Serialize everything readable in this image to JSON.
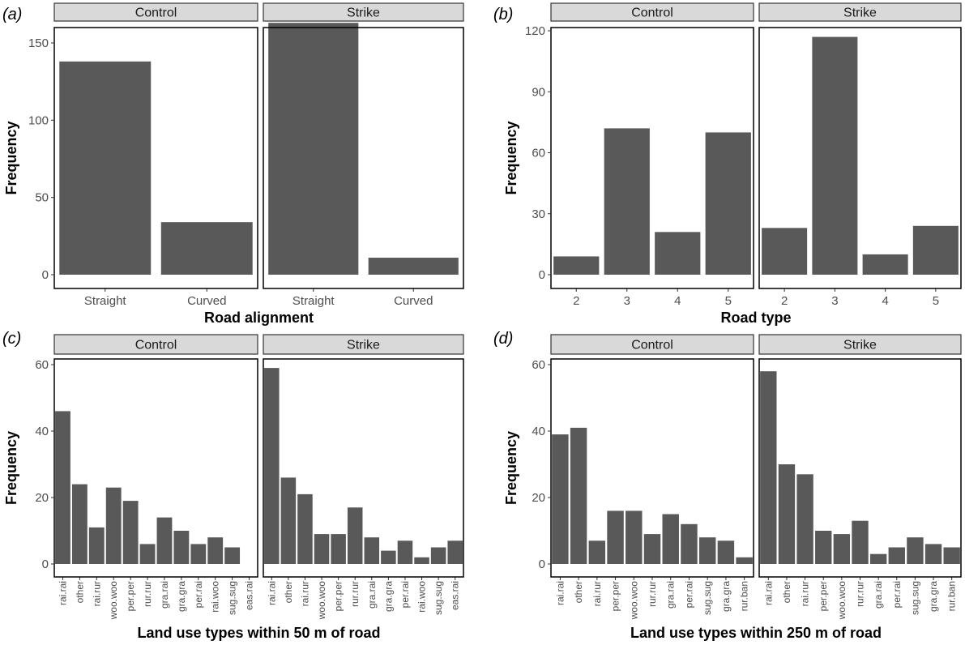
{
  "chart_data": [
    {
      "id": "a",
      "type": "bar",
      "panel_label": "(a)",
      "facets": [
        "Control",
        "Strike"
      ],
      "categories": [
        "Straight",
        "Curved"
      ],
      "series": [
        {
          "facet": "Control",
          "values": [
            138,
            34
          ]
        },
        {
          "facet": "Strike",
          "values": [
            163,
            11
          ]
        }
      ],
      "xlabel": "Road alignment",
      "ylabel": "Frequency",
      "ylim": [
        0,
        170
      ],
      "yticks": [
        0,
        50,
        100,
        150
      ],
      "x_label_rotation": 0
    },
    {
      "id": "b",
      "type": "bar",
      "panel_label": "(b)",
      "facets": [
        "Control",
        "Strike"
      ],
      "categories": [
        "2",
        "3",
        "4",
        "5"
      ],
      "series": [
        {
          "facet": "Control",
          "values": [
            9,
            72,
            21,
            70
          ]
        },
        {
          "facet": "Strike",
          "values": [
            23,
            117,
            10,
            24
          ]
        }
      ],
      "xlabel": "Road type",
      "ylabel": "Frequency",
      "ylim": [
        0,
        121
      ],
      "yticks": [
        0,
        30,
        60,
        90,
        120
      ],
      "x_label_rotation": 0
    },
    {
      "id": "c",
      "type": "bar",
      "panel_label": "(c)",
      "facets": [
        "Control",
        "Strike"
      ],
      "facet_categories": [
        [
          "rai.rai",
          "other",
          "rai.rur",
          "woo.woo",
          "per.per",
          "rur.rur",
          "gra.rai",
          "gra.gra",
          "per.rai",
          "rai.woo",
          "sug.sug",
          "eas.rai"
        ],
        [
          "rai.rai",
          "other",
          "rai.rur",
          "woo.woo",
          "per.per",
          "rur.rur",
          "gra.rai",
          "gra.gra",
          "per.rai",
          "rai.woo",
          "sug.sug",
          "eas.rai"
        ]
      ],
      "series": [
        {
          "facet": "Control",
          "values": [
            46,
            24,
            11,
            23,
            19,
            6,
            14,
            10,
            6,
            8,
            5,
            0
          ]
        },
        {
          "facet": "Strike",
          "values": [
            59,
            26,
            21,
            9,
            9,
            17,
            8,
            4,
            7,
            2,
            5,
            7
          ]
        }
      ],
      "xlabel": "Land use types within 50 m of road",
      "ylabel": "Frequency",
      "ylim": [
        0,
        61
      ],
      "yticks": [
        0,
        20,
        40,
        60
      ],
      "x_label_rotation": -90
    },
    {
      "id": "d",
      "type": "bar",
      "panel_label": "(d)",
      "facets": [
        "Control",
        "Strike"
      ],
      "facet_categories": [
        [
          "rai.rai",
          "other",
          "rai.rur",
          "per.per",
          "woo.woo",
          "rur.rur",
          "gra.rai",
          "per.rai",
          "sug.sug",
          "gra.gra",
          "rur.ban"
        ],
        [
          "rai.rai",
          "other",
          "rai.rur",
          "per.per",
          "woo.woo",
          "rur.rur",
          "gra.rai",
          "per.rai",
          "sug.sug",
          "gra.gra",
          "rur.ban"
        ]
      ],
      "series": [
        {
          "facet": "Control",
          "values": [
            39,
            41,
            7,
            16,
            16,
            9,
            15,
            12,
            8,
            7,
            2
          ]
        },
        {
          "facet": "Strike",
          "values": [
            58,
            30,
            27,
            10,
            9,
            13,
            3,
            5,
            8,
            6,
            5
          ]
        }
      ],
      "xlabel": "Land use types within 250 m of road",
      "ylabel": "Frequency",
      "ylim": [
        0,
        62
      ],
      "yticks": [
        0,
        20,
        40,
        60
      ],
      "x_label_rotation": -90
    }
  ]
}
